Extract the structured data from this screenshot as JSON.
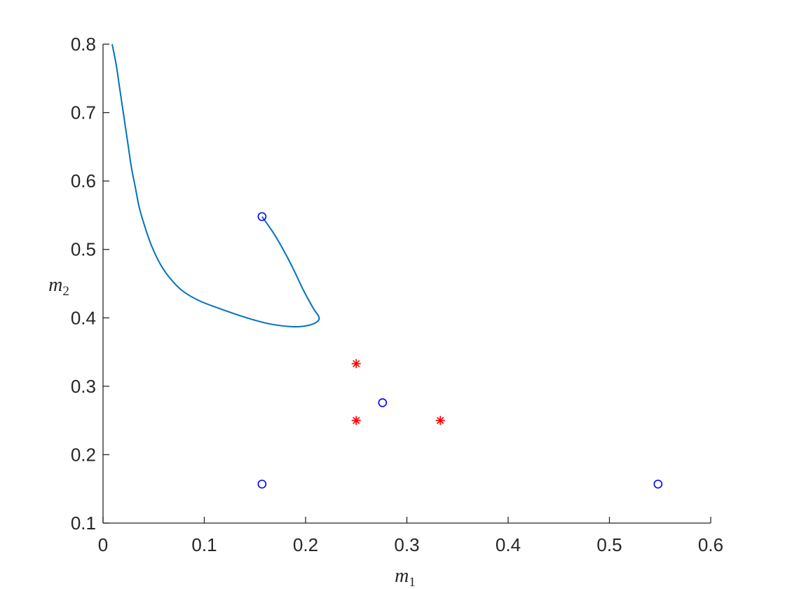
{
  "chart_data": {
    "type": "scatter",
    "xlabel": "m",
    "xlabel_sub": "1",
    "ylabel": "m",
    "ylabel_sub": "2",
    "xlim": [
      0,
      0.6
    ],
    "ylim": [
      0.1,
      0.8
    ],
    "xticks": [
      0,
      0.1,
      0.2,
      0.3,
      0.4,
      0.5,
      0.6
    ],
    "yticks": [
      0.1,
      0.2,
      0.3,
      0.4,
      0.5,
      0.6,
      0.7,
      0.8
    ],
    "xtick_labels": [
      "0",
      "0.1",
      "0.2",
      "0.3",
      "0.4",
      "0.5",
      "0.6"
    ],
    "ytick_labels": [
      "0.1",
      "0.2",
      "0.3",
      "0.4",
      "0.5",
      "0.6",
      "0.7",
      "0.8"
    ],
    "grid": false,
    "box": "left-bottom",
    "series": [
      {
        "kind": "line",
        "color": "#0072BD",
        "points": [
          [
            0.009,
            0.8
          ],
          [
            0.013,
            0.77
          ],
          [
            0.016,
            0.74
          ],
          [
            0.019,
            0.71
          ],
          [
            0.022,
            0.68
          ],
          [
            0.025,
            0.65
          ],
          [
            0.028,
            0.62
          ],
          [
            0.032,
            0.59
          ],
          [
            0.036,
            0.56
          ],
          [
            0.042,
            0.53
          ],
          [
            0.048,
            0.505
          ],
          [
            0.056,
            0.48
          ],
          [
            0.065,
            0.46
          ],
          [
            0.078,
            0.44
          ],
          [
            0.095,
            0.425
          ],
          [
            0.118,
            0.412
          ],
          [
            0.142,
            0.4
          ],
          [
            0.165,
            0.391
          ],
          [
            0.188,
            0.387
          ],
          [
            0.203,
            0.389
          ],
          [
            0.212,
            0.395
          ],
          [
            0.213,
            0.402
          ],
          [
            0.208,
            0.413
          ],
          [
            0.198,
            0.44
          ],
          [
            0.185,
            0.48
          ],
          [
            0.17,
            0.52
          ],
          [
            0.157,
            0.548
          ]
        ]
      },
      {
        "kind": "marker",
        "marker": "circle",
        "color": "#0000FF",
        "points": [
          [
            0.157,
            0.548
          ],
          [
            0.276,
            0.276
          ],
          [
            0.157,
            0.157
          ],
          [
            0.548,
            0.157
          ]
        ]
      },
      {
        "kind": "marker",
        "marker": "asterisk",
        "color": "#FF0000",
        "points": [
          [
            0.25,
            0.333
          ],
          [
            0.25,
            0.25
          ],
          [
            0.333,
            0.25
          ]
        ]
      }
    ]
  }
}
